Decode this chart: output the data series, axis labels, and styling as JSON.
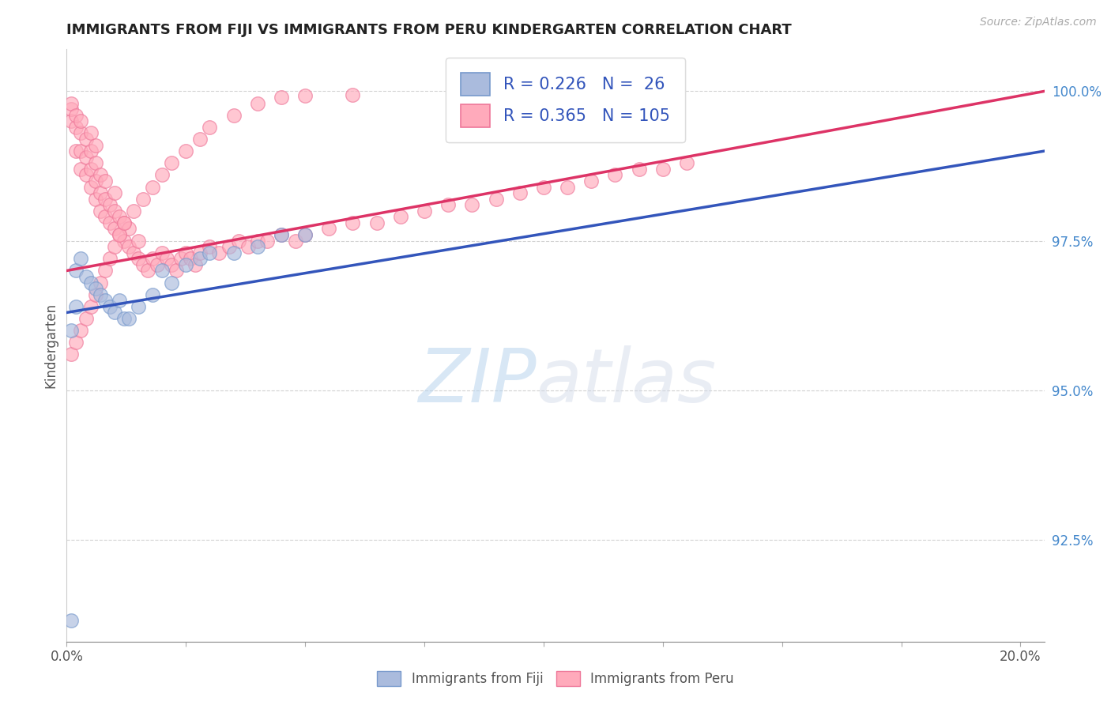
{
  "title": "IMMIGRANTS FROM FIJI VS IMMIGRANTS FROM PERU KINDERGARTEN CORRELATION CHART",
  "source_text": "Source: ZipAtlas.com",
  "ylabel": "Kindergarten",
  "xlim": [
    0.0,
    0.205
  ],
  "ylim": [
    0.908,
    1.007
  ],
  "xticks": [
    0.0,
    0.025,
    0.05,
    0.075,
    0.1,
    0.125,
    0.15,
    0.175,
    0.2
  ],
  "xtick_labels": [
    "0.0%",
    "",
    "",
    "",
    "",
    "",
    "",
    "",
    "20.0%"
  ],
  "yticks": [
    0.925,
    0.95,
    0.975,
    1.0
  ],
  "ytick_labels": [
    "92.5%",
    "95.0%",
    "97.5%",
    "100.0%"
  ],
  "fiji_color": "#aabbdd",
  "peru_color": "#ffaabb",
  "fiji_edge_color": "#7799cc",
  "peru_edge_color": "#ee7799",
  "fiji_line_color": "#3355bb",
  "peru_line_color": "#dd3366",
  "fiji_R": 0.226,
  "fiji_N": 26,
  "peru_R": 0.365,
  "peru_N": 105,
  "background_color": "#ffffff",
  "grid_color": "#cccccc",
  "fiji_scatter_x": [
    0.001,
    0.001,
    0.002,
    0.002,
    0.003,
    0.004,
    0.005,
    0.006,
    0.007,
    0.008,
    0.009,
    0.01,
    0.011,
    0.012,
    0.013,
    0.015,
    0.018,
    0.02,
    0.022,
    0.025,
    0.028,
    0.03,
    0.035,
    0.04,
    0.045,
    0.05
  ],
  "fiji_scatter_y": [
    0.9115,
    0.96,
    0.964,
    0.97,
    0.972,
    0.969,
    0.968,
    0.967,
    0.966,
    0.965,
    0.964,
    0.963,
    0.965,
    0.962,
    0.962,
    0.964,
    0.966,
    0.97,
    0.968,
    0.971,
    0.972,
    0.973,
    0.973,
    0.974,
    0.976,
    0.976
  ],
  "peru_scatter_x": [
    0.001,
    0.001,
    0.001,
    0.002,
    0.002,
    0.002,
    0.003,
    0.003,
    0.003,
    0.003,
    0.004,
    0.004,
    0.004,
    0.005,
    0.005,
    0.005,
    0.005,
    0.006,
    0.006,
    0.006,
    0.006,
    0.007,
    0.007,
    0.007,
    0.008,
    0.008,
    0.008,
    0.009,
    0.009,
    0.01,
    0.01,
    0.01,
    0.011,
    0.011,
    0.012,
    0.012,
    0.013,
    0.013,
    0.014,
    0.015,
    0.015,
    0.016,
    0.017,
    0.018,
    0.019,
    0.02,
    0.021,
    0.022,
    0.023,
    0.024,
    0.025,
    0.026,
    0.027,
    0.028,
    0.03,
    0.032,
    0.034,
    0.036,
    0.038,
    0.04,
    0.042,
    0.045,
    0.048,
    0.05,
    0.055,
    0.06,
    0.065,
    0.07,
    0.075,
    0.08,
    0.085,
    0.09,
    0.095,
    0.1,
    0.105,
    0.11,
    0.115,
    0.12,
    0.125,
    0.13,
    0.001,
    0.002,
    0.003,
    0.004,
    0.005,
    0.006,
    0.007,
    0.008,
    0.009,
    0.01,
    0.011,
    0.012,
    0.014,
    0.016,
    0.018,
    0.02,
    0.022,
    0.025,
    0.028,
    0.03,
    0.035,
    0.04,
    0.045,
    0.05,
    0.06
  ],
  "peru_scatter_y": [
    0.995,
    0.997,
    0.998,
    0.99,
    0.994,
    0.996,
    0.987,
    0.99,
    0.993,
    0.995,
    0.986,
    0.989,
    0.992,
    0.984,
    0.987,
    0.99,
    0.993,
    0.982,
    0.985,
    0.988,
    0.991,
    0.98,
    0.983,
    0.986,
    0.979,
    0.982,
    0.985,
    0.978,
    0.981,
    0.977,
    0.98,
    0.983,
    0.976,
    0.979,
    0.975,
    0.978,
    0.974,
    0.977,
    0.973,
    0.972,
    0.975,
    0.971,
    0.97,
    0.972,
    0.971,
    0.973,
    0.972,
    0.971,
    0.97,
    0.972,
    0.973,
    0.972,
    0.971,
    0.973,
    0.974,
    0.973,
    0.974,
    0.975,
    0.974,
    0.975,
    0.975,
    0.976,
    0.975,
    0.976,
    0.977,
    0.978,
    0.978,
    0.979,
    0.98,
    0.981,
    0.981,
    0.982,
    0.983,
    0.984,
    0.984,
    0.985,
    0.986,
    0.987,
    0.987,
    0.988,
    0.956,
    0.958,
    0.96,
    0.962,
    0.964,
    0.966,
    0.968,
    0.97,
    0.972,
    0.974,
    0.976,
    0.978,
    0.98,
    0.982,
    0.984,
    0.986,
    0.988,
    0.99,
    0.992,
    0.994,
    0.996,
    0.998,
    0.999,
    0.9992,
    0.9994
  ]
}
